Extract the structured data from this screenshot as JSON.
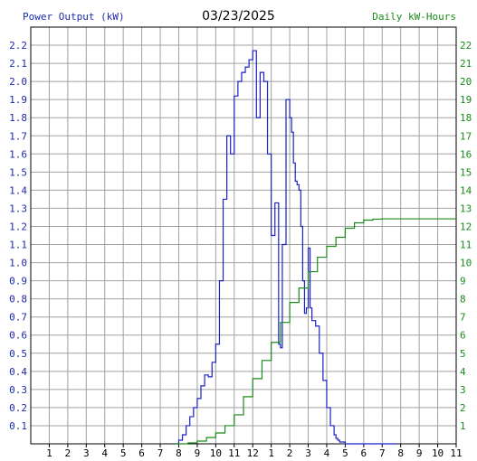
{
  "chart_data": {
    "type": "line",
    "title": "03/23/2025",
    "ylabel_left": "Power Output (kW)",
    "ylabel_right": "Daily kW-Hours",
    "x_ticks": [
      "1",
      "2",
      "3",
      "4",
      "5",
      "6",
      "7",
      "8",
      "9",
      "10",
      "11",
      "12",
      "1",
      "2",
      "3",
      "4",
      "5",
      "6",
      "7",
      "8",
      "9",
      "10",
      "11"
    ],
    "x_range": [
      0,
      23
    ],
    "y_left_range": [
      0,
      2.3
    ],
    "y_left_ticks": [
      "0.1",
      "0.2",
      "0.3",
      "0.4",
      "0.5",
      "0.6",
      "0.7",
      "0.8",
      "0.9",
      "1.0",
      "1.1",
      "1.2",
      "1.3",
      "1.4",
      "1.5",
      "1.6",
      "1.7",
      "1.8",
      "1.9",
      "2.0",
      "2.1",
      "2.2"
    ],
    "y_right_range": [
      0,
      23
    ],
    "y_right_ticks": [
      "1",
      "2",
      "3",
      "4",
      "5",
      "6",
      "7",
      "8",
      "9",
      "10",
      "11",
      "12",
      "13",
      "14",
      "15",
      "16",
      "17",
      "18",
      "19",
      "20",
      "21",
      "22"
    ],
    "grid": true,
    "colors": {
      "power": "#1a22c8",
      "energy": "#1a8a1a",
      "grid": "#a0a0a0",
      "left_axis_text": "#1a2ab0",
      "right_axis_text": "#1a8a1a"
    },
    "series": [
      {
        "name": "Power Output (kW)",
        "axis": "left",
        "x": [
          7.8,
          8.0,
          8.2,
          8.4,
          8.6,
          8.8,
          9.0,
          9.2,
          9.4,
          9.6,
          9.8,
          10.0,
          10.2,
          10.4,
          10.6,
          10.8,
          11.0,
          11.2,
          11.4,
          11.6,
          11.8,
          12.0,
          12.2,
          12.4,
          12.6,
          12.8,
          13.0,
          13.2,
          13.4,
          13.5,
          13.6,
          13.8,
          14.0,
          14.1,
          14.2,
          14.3,
          14.4,
          14.5,
          14.6,
          14.7,
          14.8,
          14.9,
          15.0,
          15.1,
          15.2,
          15.4,
          15.6,
          15.8,
          16.0,
          16.2,
          16.4,
          16.5,
          16.6,
          16.7,
          16.8,
          16.9,
          17.0,
          17.2,
          17.4,
          17.6,
          17.8,
          18.0,
          18.2,
          18.4,
          18.6,
          18.8,
          19.0,
          19.5,
          19.8
        ],
        "values": [
          0.0,
          0.02,
          0.05,
          0.1,
          0.15,
          0.2,
          0.25,
          0.32,
          0.38,
          0.37,
          0.45,
          0.55,
          0.9,
          1.35,
          1.7,
          1.6,
          1.92,
          2.0,
          2.05,
          2.08,
          2.12,
          2.17,
          1.8,
          2.05,
          2.0,
          1.6,
          1.15,
          1.33,
          0.55,
          0.53,
          1.1,
          1.9,
          1.8,
          1.72,
          1.55,
          1.45,
          1.43,
          1.4,
          1.2,
          0.9,
          0.72,
          0.75,
          1.08,
          0.75,
          0.68,
          0.65,
          0.5,
          0.35,
          0.2,
          0.1,
          0.05,
          0.03,
          0.02,
          0.01,
          0.01,
          0.01,
          0.0,
          0.0,
          0.0,
          0.0,
          0.0,
          0.0,
          0.0,
          0.0,
          0.0,
          0.0,
          0.0,
          0.0,
          0.0
        ]
      },
      {
        "name": "Daily kW-Hours",
        "axis": "right",
        "x": [
          7.8,
          8.5,
          9.0,
          9.5,
          10.0,
          10.5,
          11.0,
          11.5,
          12.0,
          12.5,
          13.0,
          13.5,
          14.0,
          14.5,
          15.0,
          15.5,
          16.0,
          16.5,
          17.0,
          17.5,
          18.0,
          18.5,
          19.0,
          23.0
        ],
        "values": [
          0.0,
          0.05,
          0.15,
          0.35,
          0.6,
          1.0,
          1.6,
          2.6,
          3.6,
          4.6,
          5.6,
          6.7,
          7.8,
          8.6,
          9.5,
          10.3,
          10.9,
          11.4,
          11.9,
          12.2,
          12.35,
          12.4,
          12.42,
          12.42
        ]
      }
    ]
  }
}
